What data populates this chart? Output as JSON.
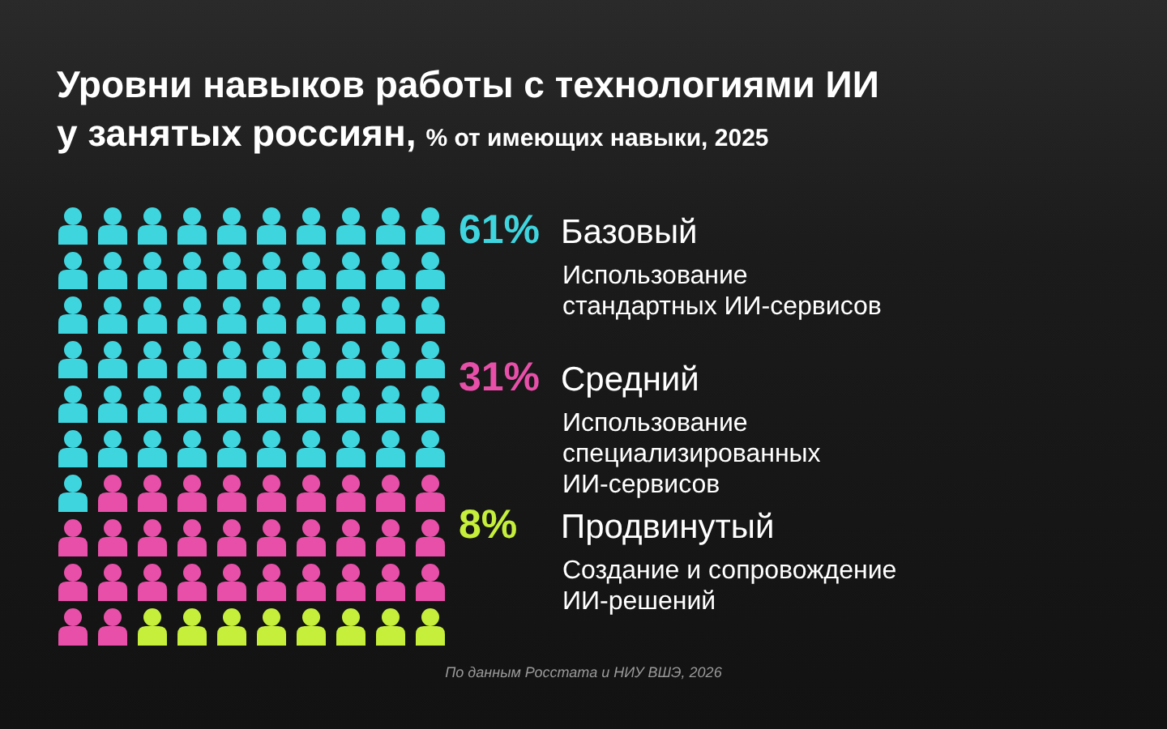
{
  "chart_data": {
    "type": "other",
    "title": "Уровни навыков работы с технологиями ИИ у занятых россиян,",
    "subtitle": "% от имеющих навыки, 2025",
    "categories": [
      "Базовый",
      "Средний",
      "Продвинутый"
    ],
    "values": [
      61,
      31,
      8
    ],
    "value_labels": [
      "61%",
      "31%",
      "8%"
    ],
    "colors": [
      "#3fd5df",
      "#e84fa9",
      "#c5ef3b"
    ],
    "annotations": [
      "Использование стандартных ИИ-сервисов",
      "Использование специализированных ИИ-сервисов",
      "Создание и сопровождение ИИ-решений",
      "По данным Росстата и НИУ ВШЭ, 2026"
    ]
  }
}
